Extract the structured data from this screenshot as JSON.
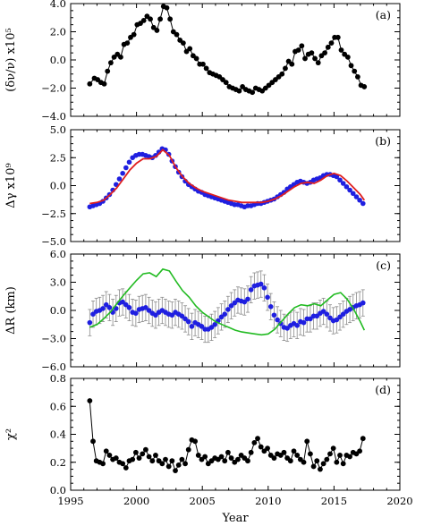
{
  "figure": {
    "x_axis_label": "Year",
    "x_ticks": [
      1995,
      2000,
      2005,
      2010,
      2015,
      2020
    ],
    "xlim": [
      1995,
      2020
    ]
  },
  "chart_data": [
    {
      "type": "line",
      "panel_label": "(a)",
      "ylabel": "(δν/ν) x10⁵",
      "ylim": [
        -4.0,
        4.0
      ],
      "y_ticks": [
        -4.0,
        -2.0,
        0.0,
        2.0,
        4.0
      ],
      "y_tick_labels": [
        "−4.0",
        "−2.0",
        "0.0",
        "2.0",
        "4.0"
      ],
      "grid": false,
      "colors": {
        "line": "#000000",
        "marker": "#000000"
      },
      "series": [
        {
          "x": [
            1996.45,
            1996.8,
            1997.05,
            1997.3,
            1997.55,
            1997.8,
            1998.05,
            1998.3,
            1998.55,
            1998.8,
            1999.05,
            1999.3,
            1999.55,
            1999.8,
            2000.05,
            2000.3,
            2000.55,
            2000.8,
            2001.05,
            2001.3,
            2001.55,
            2001.8,
            2002.05,
            2002.3,
            2002.55,
            2002.8,
            2003.05,
            2003.3,
            2003.55,
            2003.8,
            2004.05,
            2004.3,
            2004.55,
            2004.8,
            2005.05,
            2005.3,
            2005.55,
            2005.8,
            2006.05,
            2006.3,
            2006.55,
            2006.8,
            2007.05,
            2007.3,
            2007.55,
            2007.8,
            2008.05,
            2008.3,
            2008.55,
            2008.8,
            2009.05,
            2009.3,
            2009.55,
            2009.8,
            2010.05,
            2010.3,
            2010.55,
            2010.8,
            2011.05,
            2011.3,
            2011.55,
            2011.8,
            2012.05,
            2012.3,
            2012.55,
            2012.8,
            2013.05,
            2013.3,
            2013.55,
            2013.8,
            2014.05,
            2014.3,
            2014.55,
            2014.8,
            2015.05,
            2015.3,
            2015.55,
            2015.8,
            2016.05,
            2016.3,
            2016.55,
            2016.8,
            2017.05,
            2017.3
          ],
          "y": [
            -1.7,
            -1.3,
            -1.4,
            -1.6,
            -1.7,
            -0.8,
            -0.2,
            0.2,
            0.4,
            0.2,
            1.1,
            1.2,
            1.6,
            1.8,
            2.5,
            2.6,
            2.8,
            3.1,
            2.9,
            2.3,
            2.1,
            2.9,
            3.8,
            3.7,
            2.9,
            2.0,
            1.8,
            1.4,
            1.2,
            0.6,
            0.8,
            0.3,
            0.1,
            -0.3,
            -0.3,
            -0.6,
            -0.9,
            -1.0,
            -1.1,
            -1.2,
            -1.4,
            -1.6,
            -1.9,
            -2.0,
            -2.1,
            -2.2,
            -1.9,
            -2.1,
            -2.2,
            -2.3,
            -2.0,
            -2.1,
            -2.2,
            -2.0,
            -1.8,
            -1.6,
            -1.4,
            -1.2,
            -1.0,
            -0.6,
            -0.1,
            -0.3,
            0.6,
            0.7,
            1.0,
            0.1,
            0.4,
            0.5,
            0.1,
            -0.2,
            0.3,
            0.5,
            0.9,
            1.2,
            1.6,
            1.6,
            0.7,
            0.4,
            0.2,
            -0.4,
            -0.8,
            -1.2,
            -1.8,
            -1.9
          ]
        }
      ]
    },
    {
      "type": "line",
      "panel_label": "(b)",
      "ylabel": "Δγ x10⁹",
      "ylim": [
        -5.0,
        5.0
      ],
      "y_ticks": [
        -5.0,
        -2.5,
        0.0,
        2.5,
        5.0
      ],
      "y_tick_labels": [
        "−5.0",
        "−2.5",
        "0.0",
        "2.5",
        "5.0"
      ],
      "grid": false,
      "colors": {
        "observed": "#1f1fe0",
        "model": "#e01f1f"
      },
      "series": [
        {
          "style": "blue-points",
          "x": [
            1996.45,
            1996.7,
            1996.95,
            1997.2,
            1997.45,
            1997.7,
            1997.95,
            1998.2,
            1998.45,
            1998.7,
            1998.95,
            1999.2,
            1999.45,
            1999.7,
            1999.95,
            2000.2,
            2000.45,
            2000.7,
            2000.95,
            2001.2,
            2001.45,
            2001.7,
            2001.95,
            2002.2,
            2002.45,
            2002.7,
            2002.95,
            2003.2,
            2003.45,
            2003.7,
            2003.95,
            2004.2,
            2004.45,
            2004.7,
            2004.95,
            2005.2,
            2005.45,
            2005.7,
            2005.95,
            2006.2,
            2006.45,
            2006.7,
            2006.95,
            2007.2,
            2007.45,
            2007.7,
            2007.95,
            2008.2,
            2008.45,
            2008.7,
            2008.95,
            2009.2,
            2009.45,
            2009.7,
            2009.95,
            2010.2,
            2010.45,
            2010.7,
            2010.95,
            2011.2,
            2011.45,
            2011.7,
            2011.95,
            2012.2,
            2012.45,
            2012.7,
            2012.95,
            2013.2,
            2013.45,
            2013.7,
            2013.95,
            2014.2,
            2014.45,
            2014.7,
            2014.95,
            2015.2,
            2015.45,
            2015.7,
            2015.95,
            2016.2,
            2016.45,
            2016.7,
            2016.95,
            2017.2
          ],
          "y": [
            -1.9,
            -1.8,
            -1.7,
            -1.6,
            -1.4,
            -1.1,
            -0.8,
            -0.4,
            0.1,
            0.6,
            1.1,
            1.6,
            2.1,
            2.5,
            2.7,
            2.8,
            2.8,
            2.7,
            2.6,
            2.5,
            2.7,
            3.0,
            3.3,
            3.2,
            2.8,
            2.2,
            1.7,
            1.2,
            0.8,
            0.4,
            0.1,
            -0.1,
            -0.3,
            -0.5,
            -0.6,
            -0.8,
            -0.9,
            -1.0,
            -1.1,
            -1.2,
            -1.3,
            -1.4,
            -1.5,
            -1.6,
            -1.7,
            -1.7,
            -1.8,
            -1.9,
            -1.8,
            -1.8,
            -1.7,
            -1.6,
            -1.6,
            -1.5,
            -1.4,
            -1.3,
            -1.2,
            -1.0,
            -0.8,
            -0.6,
            -0.3,
            -0.1,
            0.1,
            0.3,
            0.4,
            0.3,
            0.2,
            0.3,
            0.5,
            0.6,
            0.7,
            0.9,
            1.0,
            1.0,
            0.9,
            0.8,
            0.5,
            0.2,
            -0.1,
            -0.4,
            -0.7,
            -1.0,
            -1.3,
            -1.6
          ]
        },
        {
          "style": "red-line",
          "x": [
            1996.45,
            1997.0,
            1997.5,
            1998.0,
            1998.5,
            1999.0,
            1999.5,
            2000.0,
            2000.5,
            2001.0,
            2001.5,
            2002.0,
            2002.5,
            2003.0,
            2003.5,
            2004.0,
            2004.5,
            2005.0,
            2005.5,
            2006.0,
            2006.5,
            2007.0,
            2007.5,
            2008.0,
            2008.5,
            2009.0,
            2009.5,
            2010.0,
            2010.5,
            2011.0,
            2011.5,
            2012.0,
            2012.5,
            2013.0,
            2013.5,
            2014.0,
            2014.5,
            2015.0,
            2015.5,
            2016.0,
            2016.5,
            2017.0,
            2017.3
          ],
          "y": [
            -1.6,
            -1.5,
            -1.3,
            -0.8,
            -0.2,
            0.6,
            1.4,
            2.0,
            2.4,
            2.4,
            2.6,
            3.2,
            2.7,
            1.6,
            0.8,
            0.2,
            -0.2,
            -0.5,
            -0.7,
            -0.9,
            -1.1,
            -1.3,
            -1.4,
            -1.5,
            -1.5,
            -1.5,
            -1.5,
            -1.4,
            -1.2,
            -0.9,
            -0.5,
            -0.1,
            0.2,
            0.3,
            0.2,
            0.5,
            0.9,
            1.1,
            0.9,
            0.4,
            -0.2,
            -0.8,
            -1.3
          ]
        }
      ]
    },
    {
      "type": "line",
      "panel_label": "(c)",
      "ylabel": "ΔR (km)",
      "ylim": [
        -6.0,
        6.0
      ],
      "y_ticks": [
        -6.0,
        -3.0,
        0.0,
        3.0,
        6.0
      ],
      "y_tick_labels": [
        "−6.0",
        "−3.0",
        "0.0",
        "3.0",
        "6.0"
      ],
      "grid": false,
      "colors": {
        "points": "#1f1fe0",
        "errorbars": "#8a8a8a",
        "curve": "#22bb22"
      },
      "errorbar_halfwidth": 1.4,
      "series": [
        {
          "style": "blue-points-with-errorbars",
          "x": [
            1996.45,
            1996.7,
            1996.95,
            1997.2,
            1997.45,
            1997.7,
            1997.95,
            1998.2,
            1998.45,
            1998.7,
            1998.95,
            1999.2,
            1999.45,
            1999.7,
            1999.95,
            2000.2,
            2000.45,
            2000.7,
            2000.95,
            2001.2,
            2001.45,
            2001.7,
            2001.95,
            2002.2,
            2002.45,
            2002.7,
            2002.95,
            2003.2,
            2003.45,
            2003.7,
            2003.95,
            2004.2,
            2004.45,
            2004.7,
            2004.95,
            2005.2,
            2005.45,
            2005.7,
            2005.95,
            2006.2,
            2006.45,
            2006.7,
            2006.95,
            2007.2,
            2007.45,
            2007.7,
            2007.95,
            2008.2,
            2008.45,
            2008.7,
            2008.95,
            2009.2,
            2009.45,
            2009.7,
            2009.95,
            2010.2,
            2010.45,
            2010.7,
            2010.95,
            2011.2,
            2011.45,
            2011.7,
            2011.95,
            2012.2,
            2012.45,
            2012.7,
            2012.95,
            2013.2,
            2013.45,
            2013.7,
            2013.95,
            2014.2,
            2014.45,
            2014.7,
            2014.95,
            2015.2,
            2015.45,
            2015.7,
            2015.95,
            2016.2,
            2016.45,
            2016.7,
            2016.95,
            2017.2
          ],
          "y": [
            -1.3,
            -0.4,
            -0.1,
            0.0,
            0.2,
            0.6,
            0.3,
            -0.2,
            0.2,
            0.8,
            0.9,
            0.6,
            0.3,
            -0.2,
            -0.3,
            0.1,
            0.2,
            0.3,
            0.0,
            -0.3,
            -0.5,
            -0.2,
            0.0,
            -0.2,
            -0.4,
            -0.5,
            -0.2,
            -0.4,
            -0.6,
            -0.9,
            -1.2,
            -1.7,
            -1.3,
            -1.5,
            -1.7,
            -2.0,
            -2.0,
            -1.8,
            -1.5,
            -1.1,
            -0.7,
            -0.4,
            0.1,
            0.5,
            0.8,
            1.1,
            1.0,
            0.9,
            1.2,
            2.2,
            2.6,
            2.7,
            2.8,
            2.4,
            1.4,
            0.4,
            -0.5,
            -1.0,
            -1.4,
            -1.8,
            -1.9,
            -1.6,
            -1.4,
            -1.6,
            -1.2,
            -1.3,
            -0.9,
            -0.9,
            -0.6,
            -0.6,
            -0.3,
            -0.1,
            -0.4,
            -0.8,
            -1.1,
            -1.0,
            -0.7,
            -0.4,
            -0.1,
            0.1,
            0.3,
            0.5,
            0.6,
            0.8
          ]
        },
        {
          "style": "green-line",
          "x": [
            1996.45,
            1997.0,
            1997.5,
            1998.0,
            1998.5,
            1999.0,
            1999.5,
            2000.0,
            2000.5,
            2001.0,
            2001.5,
            2002.0,
            2002.5,
            2003.0,
            2003.5,
            2004.0,
            2004.5,
            2005.0,
            2005.5,
            2006.0,
            2006.5,
            2007.0,
            2007.5,
            2008.0,
            2008.5,
            2009.0,
            2009.5,
            2010.0,
            2010.5,
            2011.0,
            2011.5,
            2012.0,
            2012.5,
            2013.0,
            2013.5,
            2014.0,
            2014.5,
            2015.0,
            2015.5,
            2016.0,
            2016.5,
            2017.0,
            2017.3
          ],
          "y": [
            -1.8,
            -1.5,
            -0.9,
            -0.2,
            0.7,
            1.6,
            2.4,
            3.2,
            3.9,
            4.0,
            3.6,
            4.4,
            4.2,
            3.1,
            2.1,
            1.4,
            0.5,
            -0.2,
            -0.7,
            -1.2,
            -1.5,
            -1.8,
            -2.1,
            -2.3,
            -2.4,
            -2.5,
            -2.6,
            -2.5,
            -2.0,
            -1.2,
            -0.4,
            0.3,
            0.6,
            0.5,
            0.7,
            0.5,
            1.1,
            1.7,
            1.9,
            1.2,
            0.1,
            -1.2,
            -2.1
          ]
        }
      ]
    },
    {
      "type": "line",
      "panel_label": "(d)",
      "ylabel": "χ²",
      "ylim": [
        0.0,
        0.8
      ],
      "y_ticks": [
        0.0,
        0.2,
        0.4,
        0.6,
        0.8
      ],
      "y_tick_labels": [
        "0.0",
        "0.2",
        "0.4",
        "0.6",
        "0.8"
      ],
      "grid": false,
      "colors": {
        "line": "#000000",
        "marker": "#000000"
      },
      "series": [
        {
          "x": [
            1996.45,
            1996.7,
            1996.95,
            1997.2,
            1997.45,
            1997.7,
            1997.95,
            1998.2,
            1998.45,
            1998.7,
            1998.95,
            1999.2,
            1999.45,
            1999.7,
            1999.95,
            2000.2,
            2000.45,
            2000.7,
            2000.95,
            2001.2,
            2001.45,
            2001.7,
            2001.95,
            2002.2,
            2002.45,
            2002.7,
            2002.95,
            2003.2,
            2003.45,
            2003.7,
            2003.95,
            2004.2,
            2004.45,
            2004.7,
            2004.95,
            2005.2,
            2005.45,
            2005.7,
            2005.95,
            2006.2,
            2006.45,
            2006.7,
            2006.95,
            2007.2,
            2007.45,
            2007.7,
            2007.95,
            2008.2,
            2008.45,
            2008.7,
            2008.95,
            2009.2,
            2009.45,
            2009.7,
            2009.95,
            2010.2,
            2010.45,
            2010.7,
            2010.95,
            2011.2,
            2011.45,
            2011.7,
            2011.95,
            2012.2,
            2012.45,
            2012.7,
            2012.95,
            2013.2,
            2013.45,
            2013.7,
            2013.95,
            2014.2,
            2014.45,
            2014.7,
            2014.95,
            2015.2,
            2015.45,
            2015.7,
            2015.95,
            2016.2,
            2016.45,
            2016.7,
            2016.95,
            2017.2
          ],
          "y": [
            0.64,
            0.35,
            0.21,
            0.2,
            0.19,
            0.28,
            0.25,
            0.22,
            0.23,
            0.2,
            0.19,
            0.16,
            0.21,
            0.22,
            0.27,
            0.23,
            0.26,
            0.29,
            0.24,
            0.21,
            0.25,
            0.21,
            0.19,
            0.22,
            0.17,
            0.21,
            0.14,
            0.18,
            0.22,
            0.19,
            0.29,
            0.36,
            0.35,
            0.25,
            0.22,
            0.24,
            0.19,
            0.21,
            0.23,
            0.22,
            0.24,
            0.21,
            0.27,
            0.23,
            0.2,
            0.22,
            0.25,
            0.23,
            0.21,
            0.27,
            0.34,
            0.37,
            0.31,
            0.28,
            0.3,
            0.25,
            0.23,
            0.26,
            0.25,
            0.27,
            0.23,
            0.21,
            0.28,
            0.25,
            0.22,
            0.2,
            0.35,
            0.26,
            0.17,
            0.21,
            0.15,
            0.19,
            0.22,
            0.26,
            0.3,
            0.2,
            0.25,
            0.19,
            0.25,
            0.24,
            0.27,
            0.26,
            0.28,
            0.37
          ]
        }
      ]
    }
  ]
}
